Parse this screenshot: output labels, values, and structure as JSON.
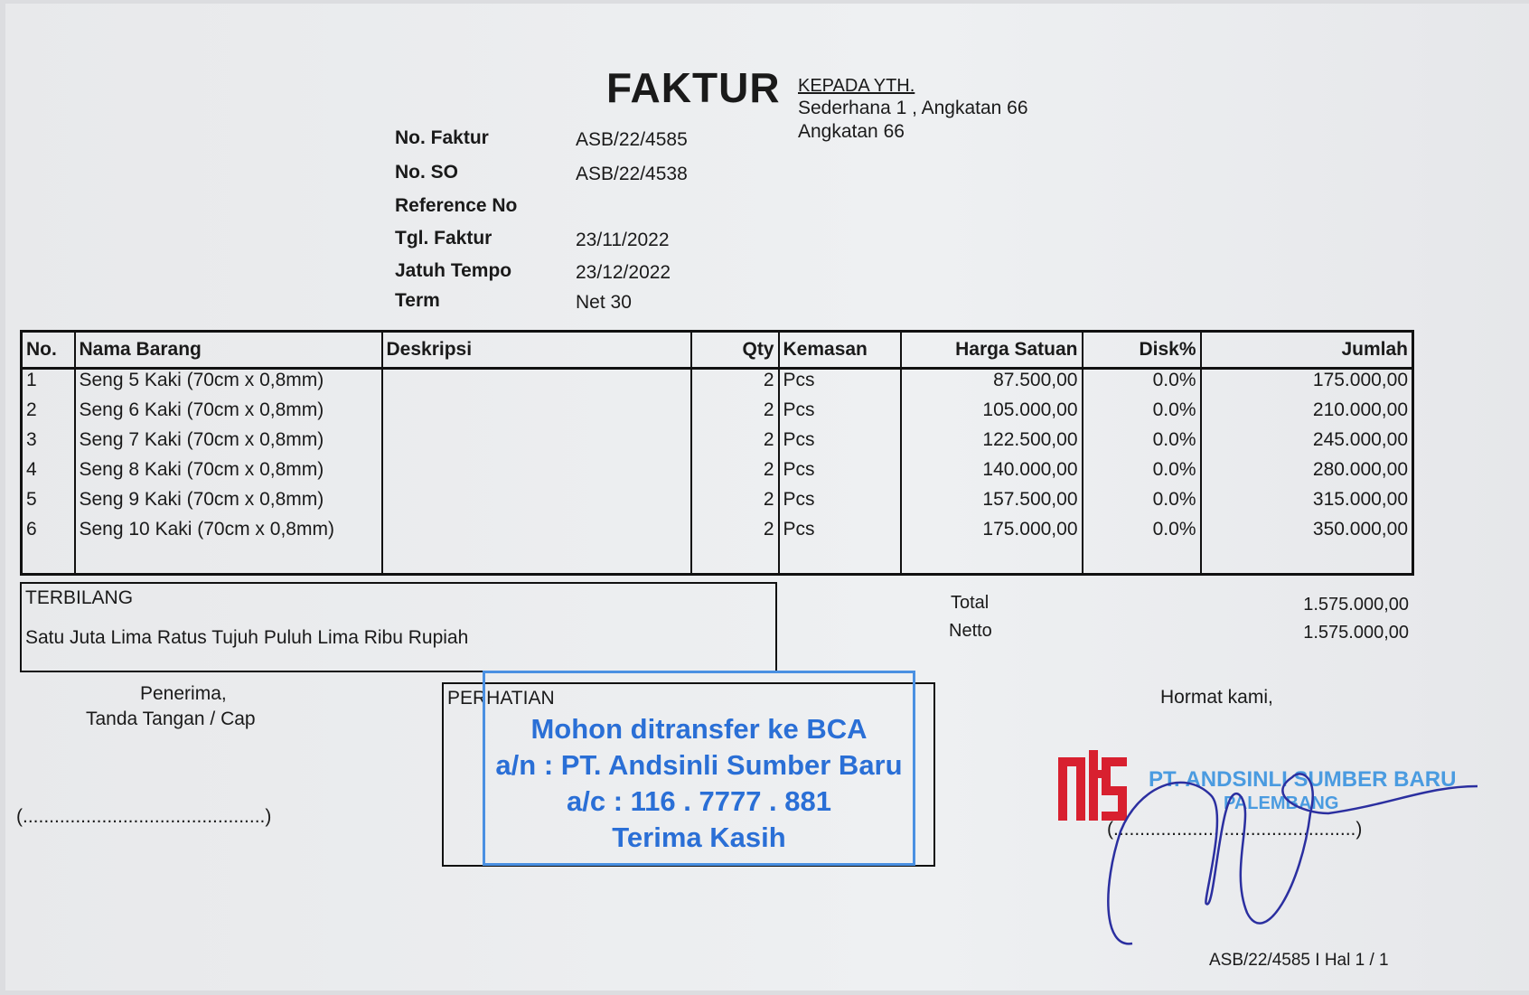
{
  "title": "FAKTUR",
  "recipient": {
    "label": "KEPADA YTH.",
    "line1": "Sederhana 1 , Angkatan 66",
    "line2": "Angkatan 66"
  },
  "info": [
    {
      "label": "No. Faktur",
      "value": "ASB/22/4585"
    },
    {
      "label": "No. SO",
      "value": "ASB/22/4538"
    },
    {
      "label": "Reference No",
      "value": ""
    },
    {
      "label": "Tgl. Faktur",
      "value": "23/11/2022"
    },
    {
      "label": "Jatuh Tempo",
      "value": "23/12/2022"
    },
    {
      "label": "Term",
      "value": "Net 30"
    }
  ],
  "table": {
    "headers": [
      "No.",
      "Nama Barang",
      "Deskripsi",
      "Qty",
      "Kemasan",
      "Harga Satuan",
      "Disk%",
      "Jumlah"
    ],
    "rows": [
      [
        "1",
        "Seng 5 Kaki (70cm x 0,8mm)",
        "",
        "2",
        "Pcs",
        "87.500,00",
        "0.0%",
        "175.000,00"
      ],
      [
        "2",
        "Seng 6 Kaki (70cm x 0,8mm)",
        "",
        "2",
        "Pcs",
        "105.000,00",
        "0.0%",
        "210.000,00"
      ],
      [
        "3",
        "Seng 7 Kaki (70cm x 0,8mm)",
        "",
        "2",
        "Pcs",
        "122.500,00",
        "0.0%",
        "245.000,00"
      ],
      [
        "4",
        "Seng 8 Kaki (70cm x 0,8mm)",
        "",
        "2",
        "Pcs",
        "140.000,00",
        "0.0%",
        "280.000,00"
      ],
      [
        "5",
        "Seng 9 Kaki (70cm x 0,8mm)",
        "",
        "2",
        "Pcs",
        "157.500,00",
        "0.0%",
        "315.000,00"
      ],
      [
        "6",
        "Seng 10 Kaki (70cm x 0,8mm)",
        "",
        "2",
        "Pcs",
        "175.000,00",
        "0.0%",
        "350.000,00"
      ]
    ]
  },
  "terbilang": {
    "label": "TERBILANG",
    "text": "Satu Juta Lima Ratus Tujuh Puluh Lima Ribu Rupiah"
  },
  "totals": {
    "total_label": "Total",
    "total": "1.575.000,00",
    "netto_label": "Netto",
    "netto": "1.575.000,00"
  },
  "receiver": {
    "line1": "Penerima,",
    "line2": "Tanda Tangan / Cap",
    "sign_line": "(..............................................)"
  },
  "notice": {
    "label": "PERHATIAN",
    "stamp": [
      "Mohon ditransfer ke BCA",
      "a/n : PT. Andsinli Sumber Baru",
      "a/c : 116 . 7777 . 881",
      "Terima Kasih"
    ]
  },
  "sender": {
    "greeting": "Hormat kami,",
    "company": "PT. ANDSINLI SUMBER BARU",
    "city": "PALEMBANG",
    "sign_line": "(..............................................)",
    "logo": "ASB"
  },
  "footer": "ASB/22/4585 I Hal 1 / 1",
  "colors": {
    "stamp_blue": "#2a6fd6",
    "logo_red": "#d8202f",
    "signature_ink": "#2b2fa0"
  }
}
